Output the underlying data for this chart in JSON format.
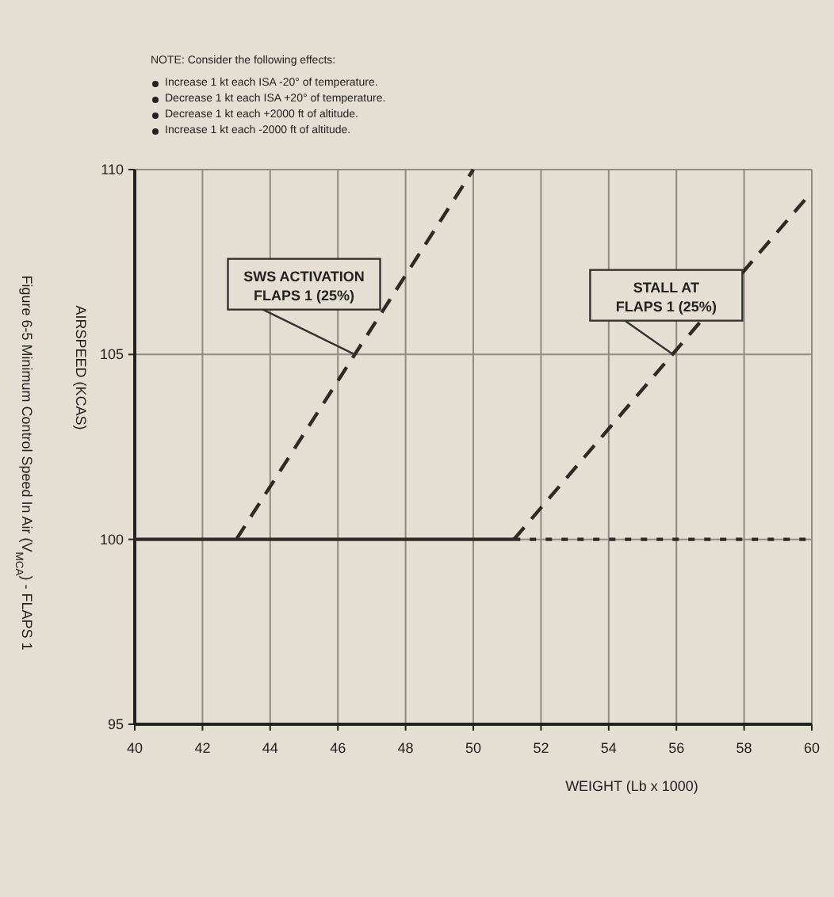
{
  "chart_data": {
    "type": "line",
    "title": "Figure 6-5 Minimum Control Speed In Air (V$_{MCA}$) - FLAPS 1",
    "xlabel": "WEIGHT (Lb x 1000)",
    "ylabel": "AIRSPEED (KCAS)",
    "xlim": [
      40,
      60
    ],
    "xticks": [
      40,
      42,
      44,
      46,
      48,
      50,
      52,
      54,
      56,
      58,
      60
    ],
    "ylim": [
      95,
      110
    ],
    "yticks": [
      95,
      100,
      105,
      110
    ],
    "grid": true,
    "series": [
      {
        "color": "#2e2a26",
        "line_style": "solid",
        "x": [
          40,
          51.2
        ],
        "values": [
          100,
          100
        ]
      },
      {
        "color": "#2e2a26",
        "line_style": "dotted",
        "x": [
          51.2,
          60
        ],
        "values": [
          100,
          100
        ]
      },
      {
        "color": "#2e2a26",
        "line_style": "dashed",
        "x": [
          43,
          50
        ],
        "values": [
          100,
          110
        ]
      },
      {
        "color": "#2e2a26",
        "line_style": "dashed",
        "x": [
          51.2,
          60
        ],
        "values": [
          100,
          109.4
        ]
      }
    ],
    "annotations": [
      "NOTE: Consider the following effects:",
      "Increase 1 kt each ISA -20° of temperature.",
      "Decrease 1 kt each ISA +20° of temperature.",
      "Decrease 1 kt each +2000 ft of altitude.",
      "Increase 1 kt each -2000 ft of altitude.",
      {
        "text": "SWS ACTIVATION\nFLAPS 1 (25%)",
        "x": 46.5,
        "y": 105
      },
      {
        "text": "STALL AT\nFLAPS 1 (25%)",
        "x": 55.9,
        "y": 105
      }
    ]
  }
}
